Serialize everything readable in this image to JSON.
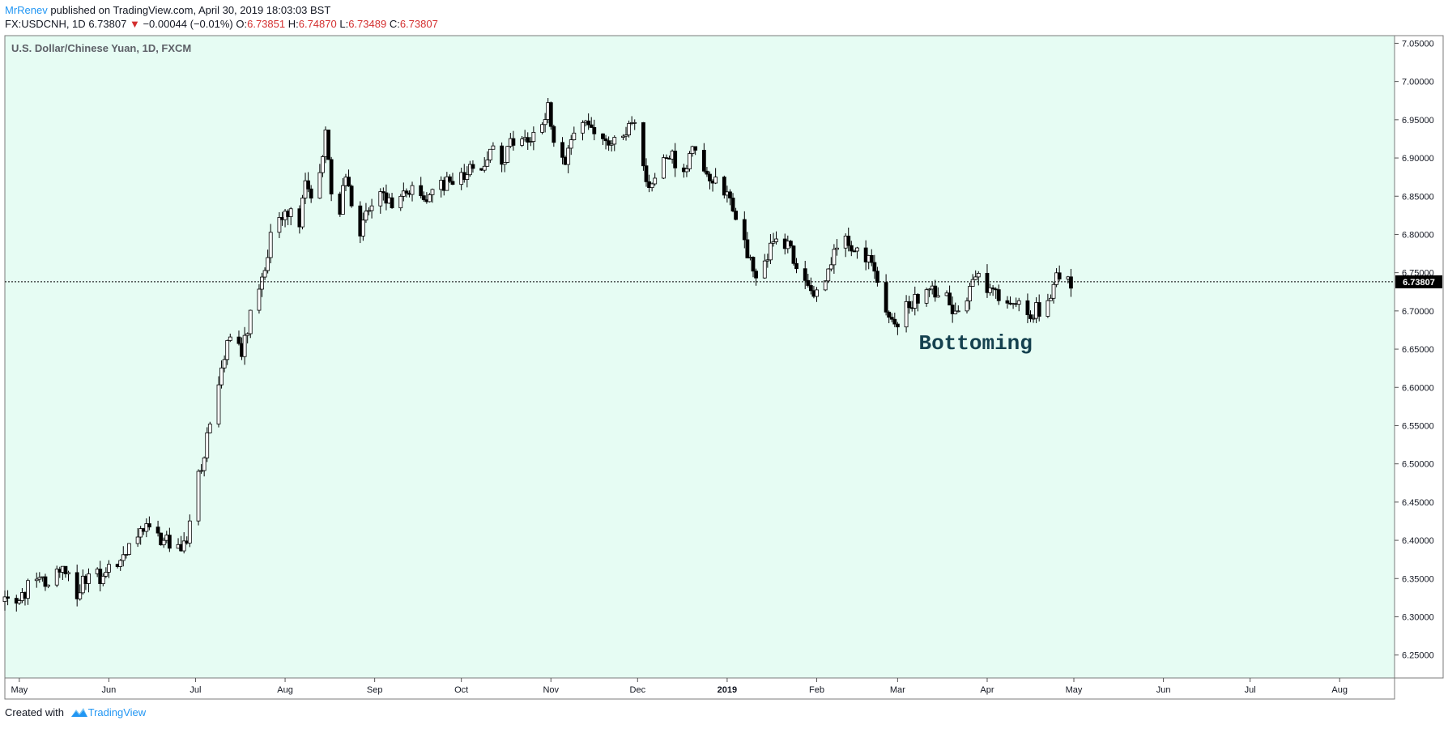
{
  "header": {
    "author": "MrRenev",
    "published": " published on TradingView.com, April 30, 2019 18:03:03 BST",
    "symbol": "FX:USDCNH, 1D",
    "last": "6.73807",
    "change_arrow": "▼",
    "change": "−0.00044 (−0.01%)",
    "o_label": "O:",
    "o_value": "6.73851",
    "h_label": "H:",
    "h_value": "6.74870",
    "l_label": "L:",
    "l_value": "6.73489",
    "c_label": "C:",
    "c_value": "6.73807"
  },
  "footer": {
    "created_with": "Created with",
    "brand": "TradingView"
  },
  "colors": {
    "plot_bg": "#e6fcf3",
    "candle_up": "#ffffff",
    "candle_down": "#000000",
    "outline": "#000000",
    "annotation": "#15414f",
    "price_tag_bg": "#000000",
    "price_change_down": "#d32f2f"
  },
  "chart_data": {
    "type": "candlestick",
    "title": "U.S. Dollar/Chinese Yuan, 1D, FXCM",
    "ylim": [
      6.22,
      7.06
    ],
    "y_ticks": [
      6.25,
      6.3,
      6.35,
      6.4,
      6.45,
      6.5,
      6.55,
      6.6,
      6.65,
      6.7,
      6.75,
      6.8,
      6.85,
      6.9,
      6.95,
      7.0,
      7.05
    ],
    "y_tick_labels": [
      "6.25000",
      "6.30000",
      "6.35000",
      "6.40000",
      "6.45000",
      "6.50000",
      "6.55000",
      "6.60000",
      "6.65000",
      "6.70000",
      "6.75000",
      "6.80000",
      "6.85000",
      "6.90000",
      "6.95000",
      "7.00000",
      "7.05000"
    ],
    "x_range": [
      "2018-04-26",
      "2019-08-20"
    ],
    "x_ticks": [
      {
        "date": "2018-05-01",
        "label": "May"
      },
      {
        "date": "2018-06-01",
        "label": "Jun"
      },
      {
        "date": "2018-07-01",
        "label": "Jul"
      },
      {
        "date": "2018-08-01",
        "label": "Aug"
      },
      {
        "date": "2018-09-01",
        "label": "Sep"
      },
      {
        "date": "2018-10-01",
        "label": "Oct"
      },
      {
        "date": "2018-11-01",
        "label": "Nov"
      },
      {
        "date": "2018-12-01",
        "label": "Dec"
      },
      {
        "date": "2019-01-01",
        "label": "2019",
        "bold": true
      },
      {
        "date": "2019-02-01",
        "label": "Feb"
      },
      {
        "date": "2019-03-01",
        "label": "Mar"
      },
      {
        "date": "2019-04-01",
        "label": "Apr"
      },
      {
        "date": "2019-05-01",
        "label": "May"
      },
      {
        "date": "2019-06-01",
        "label": "Jun"
      },
      {
        "date": "2019-07-01",
        "label": "Jul"
      },
      {
        "date": "2019-08-01",
        "label": "Aug"
      }
    ],
    "series_dates": [
      "2018-04-26",
      "2019-04-30"
    ],
    "path": [
      [
        "2018-04-26",
        6.32
      ],
      [
        "2018-05-03",
        6.33
      ],
      [
        "2018-05-07",
        6.36
      ],
      [
        "2018-05-10",
        6.34
      ],
      [
        "2018-05-16",
        6.37
      ],
      [
        "2018-05-21",
        6.33
      ],
      [
        "2018-05-25",
        6.36
      ],
      [
        "2018-05-30",
        6.35
      ],
      [
        "2018-06-04",
        6.37
      ],
      [
        "2018-06-11",
        6.4
      ],
      [
        "2018-06-15",
        6.42
      ],
      [
        "2018-06-20",
        6.4
      ],
      [
        "2018-06-25",
        6.39
      ],
      [
        "2018-06-28",
        6.4
      ],
      [
        "2018-07-02",
        6.48
      ],
      [
        "2018-07-06",
        6.55
      ],
      [
        "2018-07-10",
        6.62
      ],
      [
        "2018-07-13",
        6.67
      ],
      [
        "2018-07-17",
        6.64
      ],
      [
        "2018-07-20",
        6.7
      ],
      [
        "2018-07-24",
        6.74
      ],
      [
        "2018-07-27",
        6.8
      ],
      [
        "2018-07-31",
        6.83
      ],
      [
        "2018-08-06",
        6.82
      ],
      [
        "2018-08-08",
        6.87
      ],
      [
        "2018-08-10",
        6.84
      ],
      [
        "2018-08-13",
        6.89
      ],
      [
        "2018-08-15",
        6.93
      ],
      [
        "2018-08-17",
        6.85
      ],
      [
        "2018-08-20",
        6.83
      ],
      [
        "2018-08-22",
        6.88
      ],
      [
        "2018-08-24",
        6.84
      ],
      [
        "2018-08-27",
        6.8
      ],
      [
        "2018-08-29",
        6.82
      ],
      [
        "2018-09-03",
        6.86
      ],
      [
        "2018-09-07",
        6.84
      ],
      [
        "2018-09-12",
        6.86
      ],
      [
        "2018-09-18",
        6.85
      ],
      [
        "2018-09-21",
        6.86
      ],
      [
        "2018-09-26",
        6.87
      ],
      [
        "2018-10-02",
        6.88
      ],
      [
        "2018-10-08",
        6.89
      ],
      [
        "2018-10-11",
        6.91
      ],
      [
        "2018-10-15",
        6.9
      ],
      [
        "2018-10-19",
        6.92
      ],
      [
        "2018-10-24",
        6.93
      ],
      [
        "2018-10-29",
        6.94
      ],
      [
        "2018-10-31",
        6.97
      ],
      [
        "2018-11-02",
        6.92
      ],
      [
        "2018-11-06",
        6.9
      ],
      [
        "2018-11-09",
        6.93
      ],
      [
        "2018-11-14",
        6.95
      ],
      [
        "2018-11-19",
        6.92
      ],
      [
        "2018-11-23",
        6.93
      ],
      [
        "2018-11-28",
        6.94
      ],
      [
        "2018-11-30",
        6.95
      ],
      [
        "2018-12-03",
        6.88
      ],
      [
        "2018-12-06",
        6.86
      ],
      [
        "2018-12-10",
        6.89
      ],
      [
        "2018-12-13",
        6.9
      ],
      [
        "2018-12-17",
        6.89
      ],
      [
        "2018-12-20",
        6.91
      ],
      [
        "2018-12-24",
        6.89
      ],
      [
        "2018-12-28",
        6.87
      ],
      [
        "2019-01-03",
        6.84
      ],
      [
        "2019-01-08",
        6.78
      ],
      [
        "2019-01-11",
        6.75
      ],
      [
        "2019-01-15",
        6.77
      ],
      [
        "2019-01-18",
        6.8
      ],
      [
        "2019-01-22",
        6.79
      ],
      [
        "2019-01-25",
        6.76
      ],
      [
        "2019-01-29",
        6.74
      ],
      [
        "2019-02-01",
        6.72
      ],
      [
        "2019-02-05",
        6.76
      ],
      [
        "2019-02-08",
        6.78
      ],
      [
        "2019-02-12",
        6.79
      ],
      [
        "2019-02-15",
        6.78
      ],
      [
        "2019-02-20",
        6.77
      ],
      [
        "2019-02-22",
        6.73
      ],
      [
        "2019-02-26",
        6.7
      ],
      [
        "2019-03-01",
        6.69
      ],
      [
        "2019-03-06",
        6.71
      ],
      [
        "2019-03-11",
        6.73
      ],
      [
        "2019-03-14",
        6.72
      ],
      [
        "2019-03-18",
        6.72
      ],
      [
        "2019-03-21",
        6.7
      ],
      [
        "2019-03-25",
        6.72
      ],
      [
        "2019-03-29",
        6.74
      ],
      [
        "2019-04-02",
        6.72
      ],
      [
        "2019-04-05",
        6.72
      ],
      [
        "2019-04-09",
        6.71
      ],
      [
        "2019-04-12",
        6.72
      ],
      [
        "2019-04-16",
        6.7
      ],
      [
        "2019-04-19",
        6.7
      ],
      [
        "2019-04-23",
        6.72
      ],
      [
        "2019-04-26",
        6.75
      ],
      [
        "2019-04-30",
        6.738
      ]
    ],
    "last_price": 6.73807,
    "last_price_label": "6.73807",
    "annotation": {
      "text": "Bottoming",
      "date": "2019-03-28",
      "price": 6.65
    }
  }
}
